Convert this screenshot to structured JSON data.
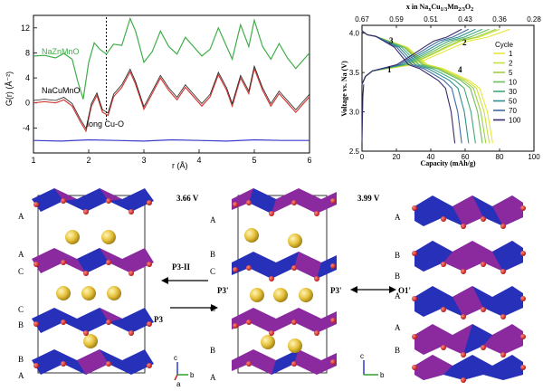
{
  "chart_data": [
    {
      "type": "line",
      "panel": "pdf",
      "xlabel": "r (Å)",
      "ylabel": "G(r) (Å⁻²)",
      "xlim": [
        1,
        6
      ],
      "ylim": [
        -8,
        14
      ],
      "xticks": [
        1,
        2,
        3,
        4,
        5,
        6
      ],
      "yticks": [
        -4,
        0,
        4,
        8,
        12
      ],
      "labels": {
        "top": "NaZnMnO",
        "bottom": "NaCuMnO",
        "annotation": "long Cu-O"
      },
      "reference_x": 2.32,
      "series": [
        {
          "name": "NaZnMnO",
          "color": "#3fae49",
          "x": [
            1.0,
            1.2,
            1.4,
            1.55,
            1.7,
            1.8,
            1.9,
            2.0,
            2.1,
            2.2,
            2.32,
            2.45,
            2.6,
            2.75,
            2.85,
            3.0,
            3.15,
            3.3,
            3.45,
            3.6,
            3.75,
            3.9,
            4.05,
            4.2,
            4.35,
            4.5,
            4.6,
            4.75,
            4.9,
            5.0,
            5.15,
            5.3,
            5.45,
            5.6,
            5.75,
            5.9,
            6.0
          ],
          "y": [
            7.5,
            7.6,
            7.2,
            7.9,
            7.0,
            3.5,
            0.6,
            6.5,
            9.6,
            8.6,
            7.8,
            9.4,
            9.2,
            13.5,
            11.5,
            6.5,
            8.2,
            11.5,
            9.0,
            7.8,
            10.5,
            9.0,
            7.5,
            8.6,
            12.0,
            9.0,
            7.0,
            12.5,
            9.0,
            13.2,
            9.0,
            7.0,
            9.5,
            7.2,
            5.5,
            7.0,
            8.0
          ]
        },
        {
          "name": "NaCuMnO",
          "color": "#d43a35",
          "x": [
            1.0,
            1.2,
            1.4,
            1.55,
            1.7,
            1.85,
            1.95,
            2.05,
            2.15,
            2.25,
            2.35,
            2.45,
            2.6,
            2.75,
            2.85,
            3.0,
            3.15,
            3.3,
            3.45,
            3.6,
            3.75,
            3.9,
            4.05,
            4.2,
            4.35,
            4.5,
            4.6,
            4.75,
            4.9,
            5.0,
            5.15,
            5.3,
            5.45,
            5.6,
            5.75,
            5.9,
            6.0
          ],
          "y": [
            0.0,
            0.2,
            0.0,
            0.5,
            -0.5,
            -3.0,
            -4.5,
            -0.5,
            1.2,
            -1.5,
            -2.0,
            1.0,
            2.5,
            5.0,
            3.0,
            -1.0,
            1.5,
            4.0,
            2.0,
            0.5,
            2.5,
            1.0,
            -0.5,
            1.0,
            4.5,
            2.0,
            -0.5,
            4.0,
            1.5,
            5.5,
            2.0,
            -0.5,
            1.5,
            0.0,
            -1.5,
            0.0,
            1.0
          ]
        },
        {
          "name": "difference",
          "color": "#3b3bcc",
          "x": [
            1.0,
            1.5,
            2.0,
            2.5,
            3.0,
            3.5,
            4.0,
            4.5,
            5.0,
            5.5,
            6.0
          ],
          "y": [
            -6.0,
            -6.1,
            -5.9,
            -6.0,
            -6.1,
            -5.9,
            -6.0,
            -6.1,
            -5.9,
            -6.0,
            -6.0
          ]
        }
      ]
    },
    {
      "type": "line",
      "panel": "voltage",
      "title": "x in Na",
      "title_sub": "x",
      "title_rest": "Cu",
      "title_sub2": "1/3",
      "title_rest2": "Mn",
      "title_sub3": "2/3",
      "title_rest3": "O",
      "title_sub4": "2",
      "xlabel": "Capacity (mAh/g)",
      "ylabel": "Voltage vs. Na (V)",
      "xlim": [
        0,
        100
      ],
      "ylim": [
        2.5,
        4.1
      ],
      "xticks": [
        0,
        20,
        40,
        60,
        80,
        100
      ],
      "yticks": [
        2.5,
        3.0,
        3.5,
        4.0
      ],
      "top_ticks": [
        "0.67",
        "0.59",
        "0.51",
        "0.43",
        "0.36",
        "0.28"
      ],
      "region_labels": [
        "1",
        "2",
        "3",
        "4"
      ],
      "legend_title": "Cycle",
      "cycles": [
        "1",
        "2",
        "5",
        "10",
        "30",
        "50",
        "70",
        "100"
      ],
      "colors": [
        "#e8e63a",
        "#c9df3e",
        "#9fd142",
        "#6fbd5a",
        "#43a77a",
        "#2f8f8e",
        "#3d6aa3",
        "#3a2a6b"
      ],
      "charge_end": [
        86,
        80,
        78,
        74,
        70,
        66,
        62,
        58
      ],
      "discharge_end": [
        76,
        74,
        72,
        70,
        66,
        62,
        58,
        54
      ]
    }
  ],
  "structures": {
    "voltage_a": "3.66 V",
    "voltage_b": "3.99 V",
    "phase_p3_ii": "P3-II",
    "phase_p3": "P3",
    "phase_p3p_a": "P3'",
    "phase_p3p_b": "P3'",
    "phase_o1p": "O1'",
    "stack_left": [
      "A",
      "A",
      "C",
      "C",
      "B",
      "B",
      "A"
    ],
    "stack_mid": [
      "A",
      "B",
      "C",
      "C",
      "B",
      "A"
    ],
    "stack_right": [
      "A",
      "B",
      "B",
      "A",
      "A",
      "B"
    ],
    "axis_c": "c",
    "axis_a": "a",
    "axis_b": "b"
  }
}
